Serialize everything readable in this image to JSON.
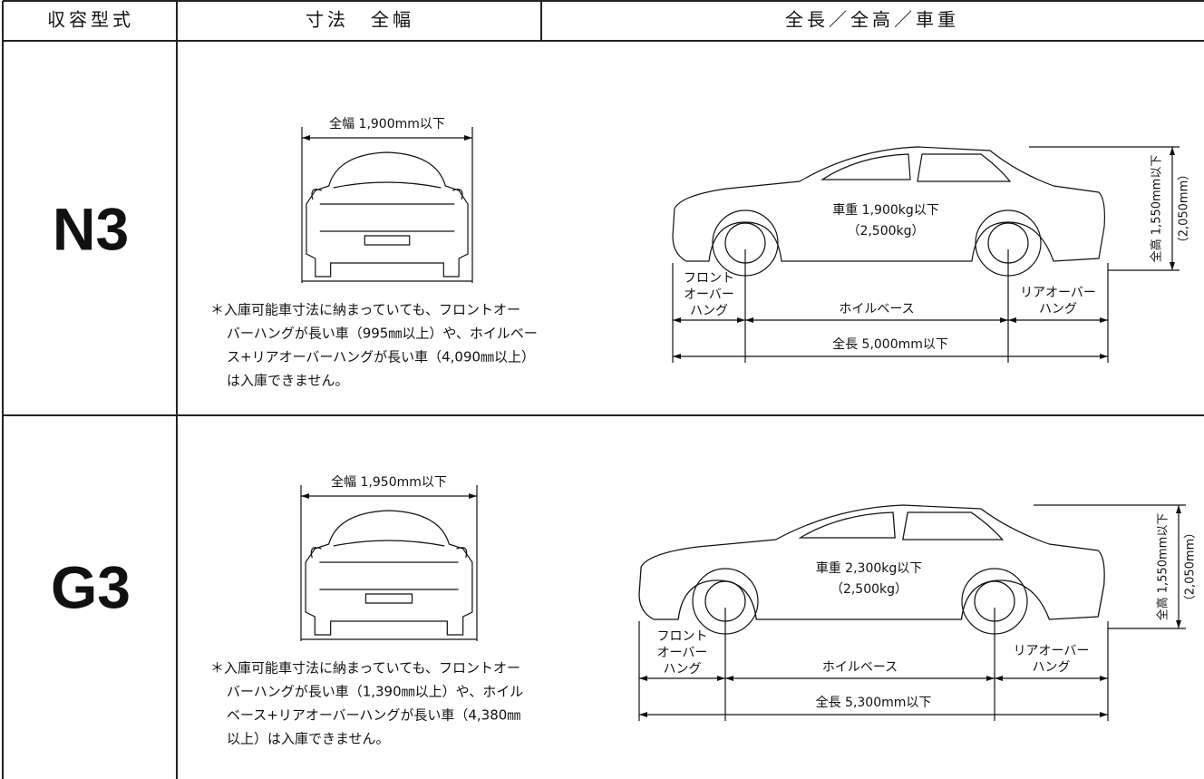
{
  "table": {
    "headers": [
      "収容型式",
      "寸法　全幅",
      "全長／全高／車重"
    ],
    "rows": [
      {
        "type": "N3",
        "width_label": "全幅 1,900mm以下",
        "note": [
          "＊入庫可能車寸法に納まっていても、フロントオー",
          "バーハングが長い車（995㎜以上）や、ホイルベー",
          "ス+リアオーバーハングが長い車（4,090㎜以上）",
          "は入庫できません。"
        ],
        "weight": "車重 1,900kg以下",
        "weight_sub": "（2,500kg）",
        "front_overhang": [
          "フロント",
          "オーバー",
          "ハング"
        ],
        "wheelbase": "ホイルベース",
        "rear_overhang": [
          "リアオーバー",
          "ハング"
        ],
        "length": "全長 5,000mm以下",
        "height": "全高 1,550mm以下",
        "height_sub": "（2,050mm）"
      },
      {
        "type": "G3",
        "width_label": "全幅 1,950mm以下",
        "note": [
          "＊入庫可能車寸法に納まっていても、フロントオー",
          "バーハングが長い車（1,390㎜以上）や、ホイル",
          "ベース+リアオーバーハングが長い車（4,380㎜",
          "以上）は入庫できません。"
        ],
        "weight": "車重 2,300kg以下",
        "weight_sub": "（2,500kg）",
        "front_overhang": [
          "フロント",
          "オーバー",
          "ハング"
        ],
        "wheelbase": "ホイルベース",
        "rear_overhang": [
          "リアオーバー",
          "ハング"
        ],
        "length": "全長 5,300mm以下",
        "height": "全高 1,550mm以下",
        "height_sub": "（2,050mm）"
      }
    ]
  }
}
